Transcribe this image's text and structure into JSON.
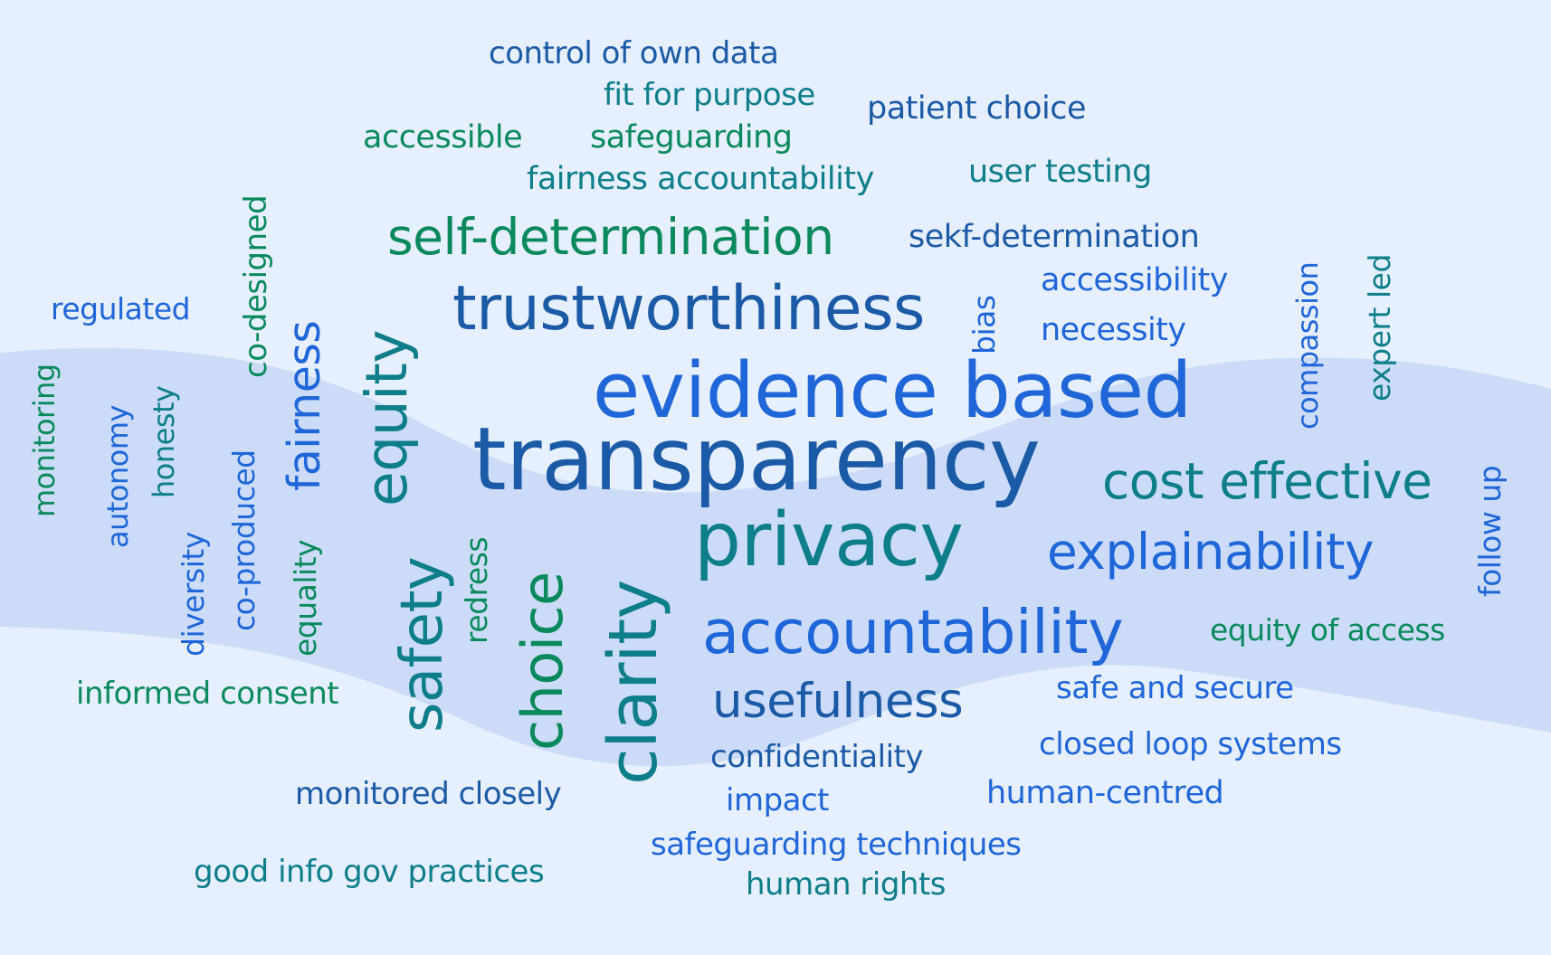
{
  "cloud": {
    "colors": {
      "background": "#e6effd",
      "band": "#ccdcf8",
      "green": "#0a8a5c",
      "teal": "#0d7e8a",
      "blue": "#1f66d9",
      "navy": "#1b5aa6"
    },
    "words": [
      {
        "id": "w1",
        "text": "control of own data",
        "color": "navy"
      },
      {
        "id": "w2",
        "text": "fit for purpose",
        "color": "teal"
      },
      {
        "id": "w3",
        "text": "patient choice",
        "color": "navy"
      },
      {
        "id": "w4",
        "text": "accessible",
        "color": "green"
      },
      {
        "id": "w5",
        "text": "safeguarding",
        "color": "green"
      },
      {
        "id": "w6",
        "text": "fairness accountability",
        "color": "teal"
      },
      {
        "id": "w7",
        "text": "user testing",
        "color": "teal"
      },
      {
        "id": "w8",
        "text": "self-determination",
        "color": "green"
      },
      {
        "id": "w9",
        "text": "sekf-determination",
        "color": "navy"
      },
      {
        "id": "w10",
        "text": "co-designed",
        "color": "green"
      },
      {
        "id": "w11",
        "text": "regulated",
        "color": "blue"
      },
      {
        "id": "w12",
        "text": "trustworthiness",
        "color": "navy"
      },
      {
        "id": "w13",
        "text": "accessibility",
        "color": "blue"
      },
      {
        "id": "w14",
        "text": "bias",
        "color": "blue"
      },
      {
        "id": "w15",
        "text": "necessity",
        "color": "blue"
      },
      {
        "id": "w16",
        "text": "compassion",
        "color": "blue"
      },
      {
        "id": "w17",
        "text": "expert led",
        "color": "teal"
      },
      {
        "id": "w18",
        "text": "fairness",
        "color": "blue"
      },
      {
        "id": "w19",
        "text": "equity",
        "color": "teal"
      },
      {
        "id": "w20",
        "text": "monitoring",
        "color": "green"
      },
      {
        "id": "w21",
        "text": "autonomy",
        "color": "blue"
      },
      {
        "id": "w22",
        "text": "honesty",
        "color": "teal"
      },
      {
        "id": "w23",
        "text": "evidence based",
        "color": "blue"
      },
      {
        "id": "w24",
        "text": "transparency",
        "color": "navy"
      },
      {
        "id": "w25",
        "text": "cost effective",
        "color": "teal"
      },
      {
        "id": "w26",
        "text": "follow up",
        "color": "blue"
      },
      {
        "id": "w27",
        "text": "co-produced",
        "color": "blue"
      },
      {
        "id": "w28",
        "text": "diversity",
        "color": "blue"
      },
      {
        "id": "w29",
        "text": "equality",
        "color": "green"
      },
      {
        "id": "w30",
        "text": "privacy",
        "color": "teal"
      },
      {
        "id": "w31",
        "text": "explainability",
        "color": "blue"
      },
      {
        "id": "w32",
        "text": "safety",
        "color": "teal"
      },
      {
        "id": "w33",
        "text": "redress",
        "color": "green"
      },
      {
        "id": "w34",
        "text": "choice",
        "color": "green"
      },
      {
        "id": "w35",
        "text": "clarity",
        "color": "teal"
      },
      {
        "id": "w36",
        "text": "accountability",
        "color": "blue"
      },
      {
        "id": "w37",
        "text": "equity of access",
        "color": "green"
      },
      {
        "id": "w38",
        "text": "informed consent",
        "color": "green"
      },
      {
        "id": "w39",
        "text": "usefulness",
        "color": "navy"
      },
      {
        "id": "w40",
        "text": "safe and secure",
        "color": "blue"
      },
      {
        "id": "w41",
        "text": "confidentiality",
        "color": "navy"
      },
      {
        "id": "w42",
        "text": "closed loop systems",
        "color": "blue"
      },
      {
        "id": "w43",
        "text": "monitored closely",
        "color": "navy"
      },
      {
        "id": "w44",
        "text": "impact",
        "color": "blue"
      },
      {
        "id": "w45",
        "text": "human-centred",
        "color": "blue"
      },
      {
        "id": "w46",
        "text": "safeguarding techniques",
        "color": "blue"
      },
      {
        "id": "w47",
        "text": "good info gov practices",
        "color": "teal"
      },
      {
        "id": "w48",
        "text": "human rights",
        "color": "teal"
      }
    ]
  }
}
